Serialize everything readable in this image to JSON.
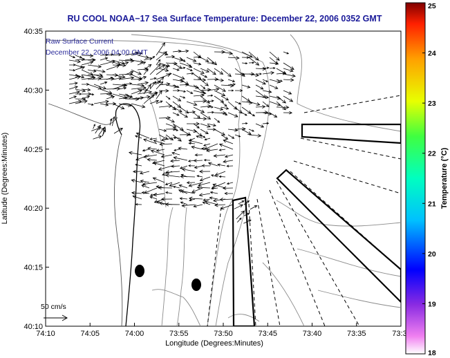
{
  "chart_data": {
    "type": "map-vector-field",
    "title": "RU COOL  NOAA−17  Sea Surface Temperature:  December 22, 2006 0352 GMT",
    "xlabel": "Longitude (Degrees:Minutes)",
    "ylabel": "Latitude (Degrees:Minutes)",
    "x_ticks": [
      "74:10",
      "74:05",
      "74:00",
      "73:55",
      "73:50",
      "73:45",
      "73:40",
      "73:35",
      "73:3"
    ],
    "y_ticks": [
      "40:10",
      "40:15",
      "40:20",
      "40:25",
      "40:30",
      "40:35"
    ],
    "xlim_minutes_west": [
      70,
      30
    ],
    "ylim_minutes": [
      10,
      35
    ],
    "legend": {
      "line1": "Raw Surface Current",
      "line2": "December 22, 2006 04:00 GMT"
    },
    "scale_label": "50 cm/s",
    "colorbar": {
      "label": "Temperature (°C)",
      "min": 18,
      "max": 25,
      "ticks": [
        "18",
        "19",
        "20",
        "21",
        "22",
        "23",
        "24",
        "25"
      ]
    },
    "colors": {
      "title": "#1a1a99",
      "legend": "#2a2a9a",
      "contour": "#8a8a8a",
      "vectors": "#000000"
    }
  }
}
